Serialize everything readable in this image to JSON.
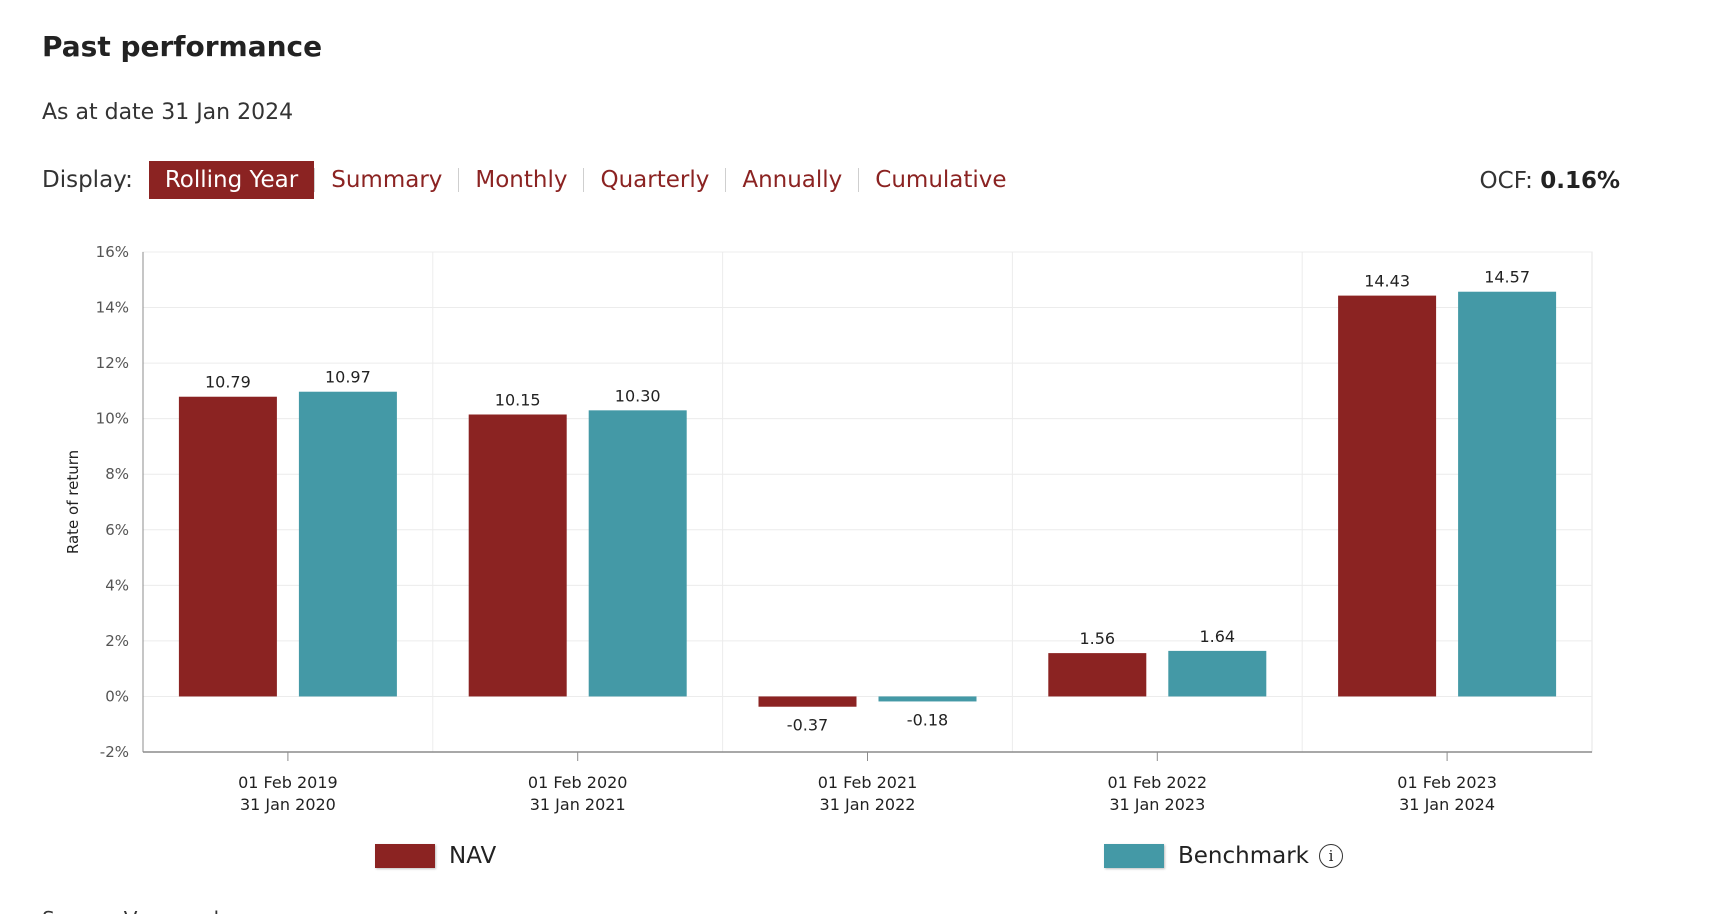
{
  "page": {
    "title": "Past performance",
    "as_at": "As at date 31 Jan 2024"
  },
  "display": {
    "label": "Display:",
    "tabs": [
      {
        "label": "Rolling Year",
        "active": true
      },
      {
        "label": "Summary",
        "active": false
      },
      {
        "label": "Monthly",
        "active": false
      },
      {
        "label": "Quarterly",
        "active": false
      },
      {
        "label": "Annually",
        "active": false
      },
      {
        "label": "Cumulative",
        "active": false
      }
    ]
  },
  "ocf": {
    "label": "OCF:",
    "value": "0.16%"
  },
  "colors": {
    "nav": "#8b2322",
    "benchmark": "#4499a6",
    "accent": "#8b2322"
  },
  "chart_data": {
    "type": "bar",
    "ylabel": "Rate of return",
    "ylim": [
      -2,
      16
    ],
    "yticks": [
      "-2%",
      "0%",
      "2%",
      "4%",
      "6%",
      "8%",
      "10%",
      "12%",
      "14%",
      "16%"
    ],
    "ytick_values": [
      -2,
      0,
      2,
      4,
      6,
      8,
      10,
      12,
      14,
      16
    ],
    "categories": [
      [
        "01 Feb 2019",
        "31 Jan 2020"
      ],
      [
        "01 Feb 2020",
        "31 Jan 2021"
      ],
      [
        "01 Feb 2021",
        "31 Jan 2022"
      ],
      [
        "01 Feb 2022",
        "31 Jan 2023"
      ],
      [
        "01 Feb 2023",
        "31 Jan 2024"
      ]
    ],
    "series": [
      {
        "name": "NAV",
        "values": [
          10.79,
          10.15,
          -0.37,
          1.56,
          14.43
        ],
        "labels": [
          "10.79",
          "10.15",
          "-0.37",
          "1.56",
          "14.43"
        ]
      },
      {
        "name": "Benchmark",
        "values": [
          10.97,
          10.3,
          -0.18,
          1.64,
          14.57
        ],
        "labels": [
          "10.97",
          "10.30",
          "-0.18",
          "1.64",
          "14.57"
        ]
      }
    ],
    "grid": true,
    "legend": "bottom"
  },
  "legend": {
    "nav_label": "NAV",
    "benchmark_label": "Benchmark",
    "info_icon": "info-icon"
  },
  "footer": {
    "source_text": "Source: Vanguard"
  }
}
